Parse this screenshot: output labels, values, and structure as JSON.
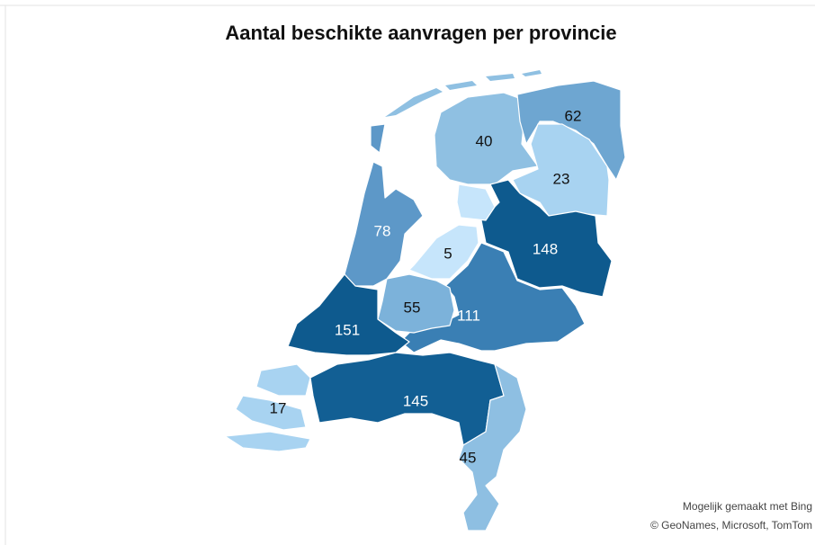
{
  "map_data": {
    "title": "Aantal beschikte aanvragen per provincie",
    "regions": [
      {
        "value": 40,
        "color": "#8fc0e2"
      },
      {
        "value": 62,
        "color": "#6ea6d1"
      },
      {
        "value": 23,
        "color": "#a8d3f1"
      },
      {
        "value": 148,
        "color": "#0e5a8e"
      },
      {
        "value": 5,
        "color": "#c6e5fb"
      },
      {
        "value": 111,
        "color": "#3a7fb4"
      },
      {
        "value": 55,
        "color": "#7cb2da"
      },
      {
        "value": 78,
        "color": "#5d98c8"
      },
      {
        "value": 151,
        "color": "#0e5a8e"
      },
      {
        "value": 17,
        "color": "#a8d3f1"
      },
      {
        "value": 145,
        "color": "#125f94"
      },
      {
        "value": 45,
        "color": "#8ebfe2"
      }
    ],
    "attribution": [
      "Mogelijk gemaakt met Bing",
      "© GeoNames, Microsoft, TomTom"
    ]
  }
}
